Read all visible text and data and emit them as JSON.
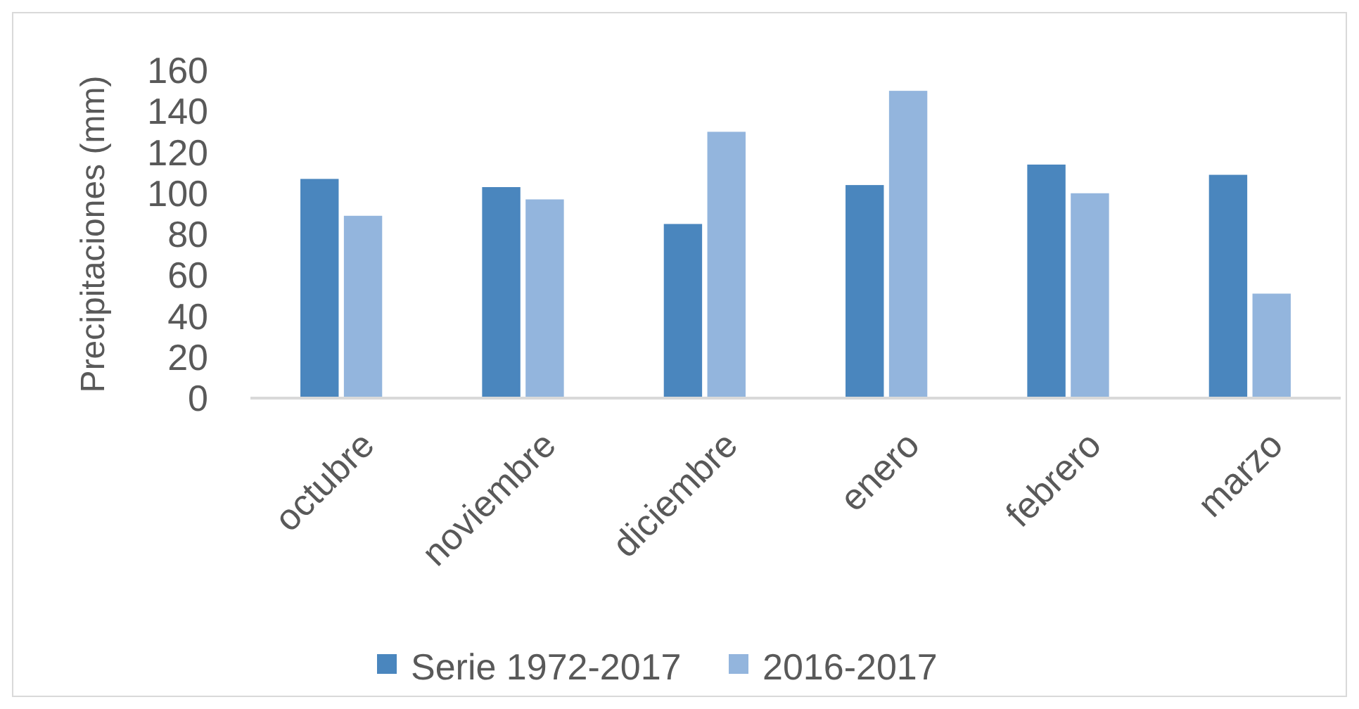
{
  "chart_data": {
    "type": "bar",
    "ylabel": "Precipitaciones (mm)",
    "categories": [
      "octubre",
      "noviembre",
      "diciembre",
      "enero",
      "febrero",
      "marzo"
    ],
    "series": [
      {
        "name": "Serie 1972-2017",
        "color": "#4a86be",
        "values": [
          107,
          103,
          85,
          104,
          114,
          109
        ]
      },
      {
        "name": "2016-2017",
        "color": "#93b5dd",
        "values": [
          89,
          97,
          130,
          150,
          100,
          51
        ]
      }
    ],
    "ylim": [
      0,
      160
    ],
    "yticks": [
      0,
      20,
      40,
      60,
      80,
      100,
      120,
      140,
      160
    ],
    "grid": false,
    "legend": "bottom"
  }
}
